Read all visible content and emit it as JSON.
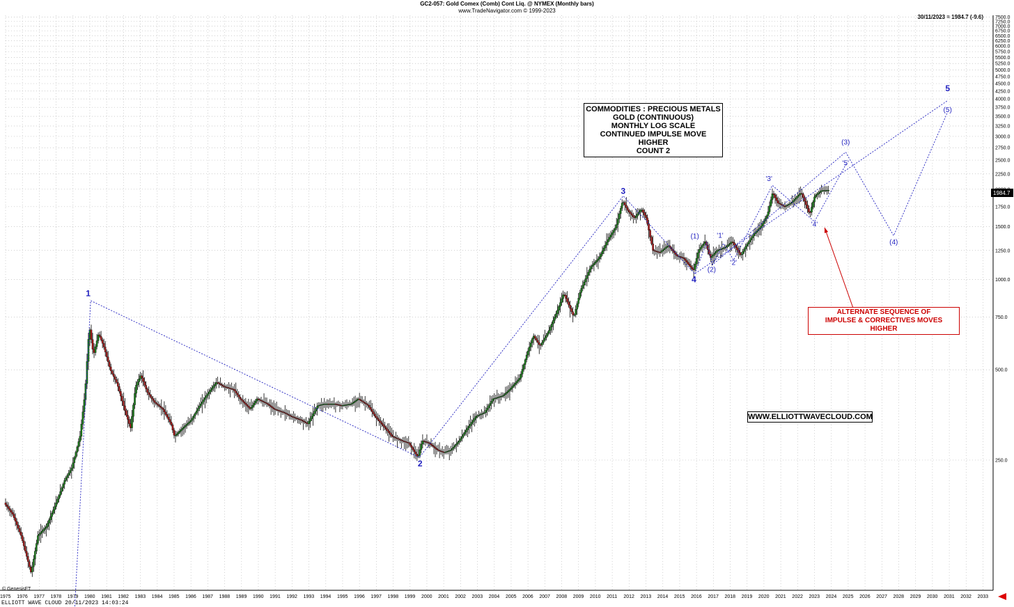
{
  "header": {
    "title": "GC2-057: Gold Comex (Comb) Cont Liq. @ NYMEX (Monthly bars)",
    "subtitle": "www.TradeNavigator.com © 1999-2023",
    "last_quote": "30/11/2023 = 1984.7 (-9.6)",
    "price_tag": "1984.7"
  },
  "annotation_box": {
    "lines": [
      "COMMODITIES : PRECIOUS METALS",
      "GOLD (CONTINUOUS)",
      "MONTHLY LOG SCALE",
      "CONTINUED IMPULSE MOVE HIGHER",
      "COUNT 2"
    ]
  },
  "alternate_box": {
    "line1": "ALTERNATE SEQUENCE OF",
    "line2": "IMPULSE & CORRECTIVES MOVES HIGHER"
  },
  "website": "WWW.ELLIOTTWAVECLOUD.COM",
  "footer": {
    "left": "ELLIOTT WAVE CLOUD   20/11/2023 14:03:24",
    "copyright": "© GenesisFT"
  },
  "colors": {
    "wave": "#1f1fbf",
    "alert": "#cc0000",
    "grid": "#b8b8b8"
  },
  "chart_data": {
    "type": "candlestick",
    "scale": "log",
    "title": "GC2-057: Gold Comex (Comb) Cont Liq. @ NYMEX (Monthly bars)",
    "x_range": [
      1975,
      2033
    ],
    "x_ticks": [
      "1975",
      "1976",
      "1977",
      "1978",
      "1979",
      "1980",
      "1981",
      "1982",
      "1983",
      "1984",
      "1985",
      "1986",
      "1987",
      "1988",
      "1989",
      "1990",
      "1991",
      "1992",
      "1993",
      "1994",
      "1995",
      "1996",
      "1997",
      "1998",
      "1999",
      "2000",
      "2001",
      "2002",
      "2003",
      "2004",
      "2005",
      "2006",
      "2007",
      "2008",
      "2009",
      "2010",
      "2011",
      "2012",
      "2013",
      "2014",
      "2015",
      "2016",
      "2017",
      "2018",
      "2019",
      "2020",
      "2021",
      "2022",
      "2023",
      "2024",
      "2025",
      "2026",
      "2027",
      "2028",
      "2029",
      "2030",
      "2031",
      "2032",
      "2033"
    ],
    "y_ticks": [
      "7500.0",
      "7250.0",
      "7000.0",
      "6750.0",
      "6500.0",
      "6250.0",
      "6000.0",
      "5750.0",
      "5500.0",
      "5250.0",
      "5000.0",
      "4750.0",
      "4500.0",
      "4250.0",
      "4000.0",
      "3750.0",
      "3500.0",
      "3250.0",
      "3000.0",
      "2750.0",
      "2500.0",
      "2250.0",
      "2000.0",
      "1750.0",
      "1500.0",
      "1250.0",
      "1000.0",
      "750.0",
      "500.0",
      "250.0"
    ],
    "price_path": [
      [
        1975.0,
        180
      ],
      [
        1975.5,
        165
      ],
      [
        1976.0,
        140
      ],
      [
        1976.6,
        105
      ],
      [
        1977.0,
        140
      ],
      [
        1977.5,
        150
      ],
      [
        1978.0,
        175
      ],
      [
        1978.6,
        215
      ],
      [
        1979.0,
        235
      ],
      [
        1979.5,
        300
      ],
      [
        1979.8,
        420
      ],
      [
        1980.05,
        700
      ],
      [
        1980.3,
        560
      ],
      [
        1980.6,
        660
      ],
      [
        1980.9,
        600
      ],
      [
        1981.3,
        500
      ],
      [
        1981.7,
        450
      ],
      [
        1982.2,
        360
      ],
      [
        1982.5,
        320
      ],
      [
        1982.8,
        440
      ],
      [
        1983.1,
        480
      ],
      [
        1983.5,
        420
      ],
      [
        1983.9,
        390
      ],
      [
        1984.4,
        370
      ],
      [
        1984.9,
        330
      ],
      [
        1985.1,
        300
      ],
      [
        1985.6,
        320
      ],
      [
        1986.1,
        340
      ],
      [
        1986.6,
        380
      ],
      [
        1987.0,
        410
      ],
      [
        1987.6,
        455
      ],
      [
        1988.0,
        440
      ],
      [
        1988.6,
        430
      ],
      [
        1989.0,
        400
      ],
      [
        1989.6,
        370
      ],
      [
        1990.0,
        400
      ],
      [
        1990.6,
        385
      ],
      [
        1991.0,
        370
      ],
      [
        1991.6,
        360
      ],
      [
        1992.0,
        350
      ],
      [
        1992.6,
        340
      ],
      [
        1993.0,
        330
      ],
      [
        1993.6,
        380
      ],
      [
        1994.0,
        385
      ],
      [
        1994.6,
        385
      ],
      [
        1995.0,
        380
      ],
      [
        1995.6,
        385
      ],
      [
        1996.0,
        400
      ],
      [
        1996.6,
        380
      ],
      [
        1997.0,
        350
      ],
      [
        1997.6,
        320
      ],
      [
        1998.0,
        300
      ],
      [
        1998.6,
        290
      ],
      [
        1999.0,
        285
      ],
      [
        1999.55,
        255
      ],
      [
        1999.8,
        290
      ],
      [
        2000.2,
        285
      ],
      [
        2000.7,
        270
      ],
      [
        2001.1,
        265
      ],
      [
        2001.5,
        270
      ],
      [
        2002.0,
        290
      ],
      [
        2002.5,
        320
      ],
      [
        2003.0,
        350
      ],
      [
        2003.5,
        360
      ],
      [
        2004.0,
        400
      ],
      [
        2004.6,
        410
      ],
      [
        2005.0,
        430
      ],
      [
        2005.6,
        470
      ],
      [
        2006.0,
        560
      ],
      [
        2006.4,
        650
      ],
      [
        2006.8,
        600
      ],
      [
        2007.3,
        670
      ],
      [
        2007.8,
        780
      ],
      [
        2008.2,
        900
      ],
      [
        2008.8,
        750
      ],
      [
        2009.2,
        920
      ],
      [
        2009.8,
        1100
      ],
      [
        2010.3,
        1180
      ],
      [
        2010.8,
        1350
      ],
      [
        2011.3,
        1500
      ],
      [
        2011.7,
        1830
      ],
      [
        2012.0,
        1700
      ],
      [
        2012.4,
        1600
      ],
      [
        2012.8,
        1720
      ],
      [
        2013.1,
        1600
      ],
      [
        2013.5,
        1250
      ],
      [
        2013.9,
        1230
      ],
      [
        2014.4,
        1300
      ],
      [
        2014.9,
        1200
      ],
      [
        2015.3,
        1180
      ],
      [
        2015.9,
        1070
      ],
      [
        2016.2,
        1250
      ],
      [
        2016.6,
        1340
      ],
      [
        2016.9,
        1180
      ],
      [
        2017.3,
        1250
      ],
      [
        2017.8,
        1280
      ],
      [
        2018.2,
        1340
      ],
      [
        2018.7,
        1200
      ],
      [
        2019.0,
        1290
      ],
      [
        2019.5,
        1420
      ],
      [
        2019.9,
        1500
      ],
      [
        2020.3,
        1650
      ],
      [
        2020.6,
        1950
      ],
      [
        2020.9,
        1800
      ],
      [
        2021.3,
        1750
      ],
      [
        2021.7,
        1800
      ],
      [
        2022.1,
        1900
      ],
      [
        2022.3,
        1950
      ],
      [
        2022.8,
        1650
      ],
      [
        2023.1,
        1900
      ],
      [
        2023.5,
        1980
      ],
      [
        2023.9,
        1984.7
      ]
    ],
    "wave_labels": [
      {
        "text": "1",
        "x": 1979.9,
        "y": 880
      },
      {
        "text": "2",
        "x": 1999.6,
        "y": 238
      },
      {
        "text": "3",
        "x": 2011.65,
        "y": 1930
      },
      {
        "text": "4",
        "x": 2015.85,
        "y": 980
      },
      {
        "text": "5",
        "x": 2030.9,
        "y": 4250
      },
      {
        "text": "(1)",
        "x": 2015.9,
        "y": 1370
      },
      {
        "text": "(2)",
        "x": 2016.9,
        "y": 1060
      },
      {
        "text": "(3)",
        "x": 2024.85,
        "y": 2820
      },
      {
        "text": "(4)",
        "x": 2027.7,
        "y": 1310
      },
      {
        "text": "(5)",
        "x": 2030.9,
        "y": 3620
      },
      {
        "text": "'1'",
        "x": 2017.4,
        "y": 1380
      },
      {
        "text": "'2'",
        "x": 2018.2,
        "y": 1120
      },
      {
        "text": "'3'",
        "x": 2020.3,
        "y": 2130
      },
      {
        "text": "'4'",
        "x": 2023.0,
        "y": 1500
      },
      {
        "text": "'5'",
        "x": 2024.85,
        "y": 2400
      }
    ],
    "wave_paths": [
      [
        [
          1979.05,
          70
        ],
        [
          1980.05,
          850
        ],
        [
          1999.55,
          255
        ],
        [
          2011.65,
          1900
        ],
        [
          2015.9,
          1045
        ],
        [
          2030.9,
          3950
        ]
      ],
      [
        [
          2015.9,
          1045
        ],
        [
          2016.6,
          1330
        ],
        [
          2016.95,
          1120
        ],
        [
          2024.85,
          2660
        ],
        [
          2027.7,
          1400
        ],
        [
          2030.9,
          3620
        ]
      ],
      [
        [
          2016.95,
          1120
        ],
        [
          2017.6,
          1320
        ],
        [
          2018.2,
          1160
        ],
        [
          2020.5,
          2060
        ],
        [
          2023.0,
          1560
        ],
        [
          2024.9,
          2440
        ]
      ]
    ],
    "arrow": {
      "from": [
        2025.5,
        745
      ],
      "to": [
        2023.6,
        1490
      ]
    }
  }
}
